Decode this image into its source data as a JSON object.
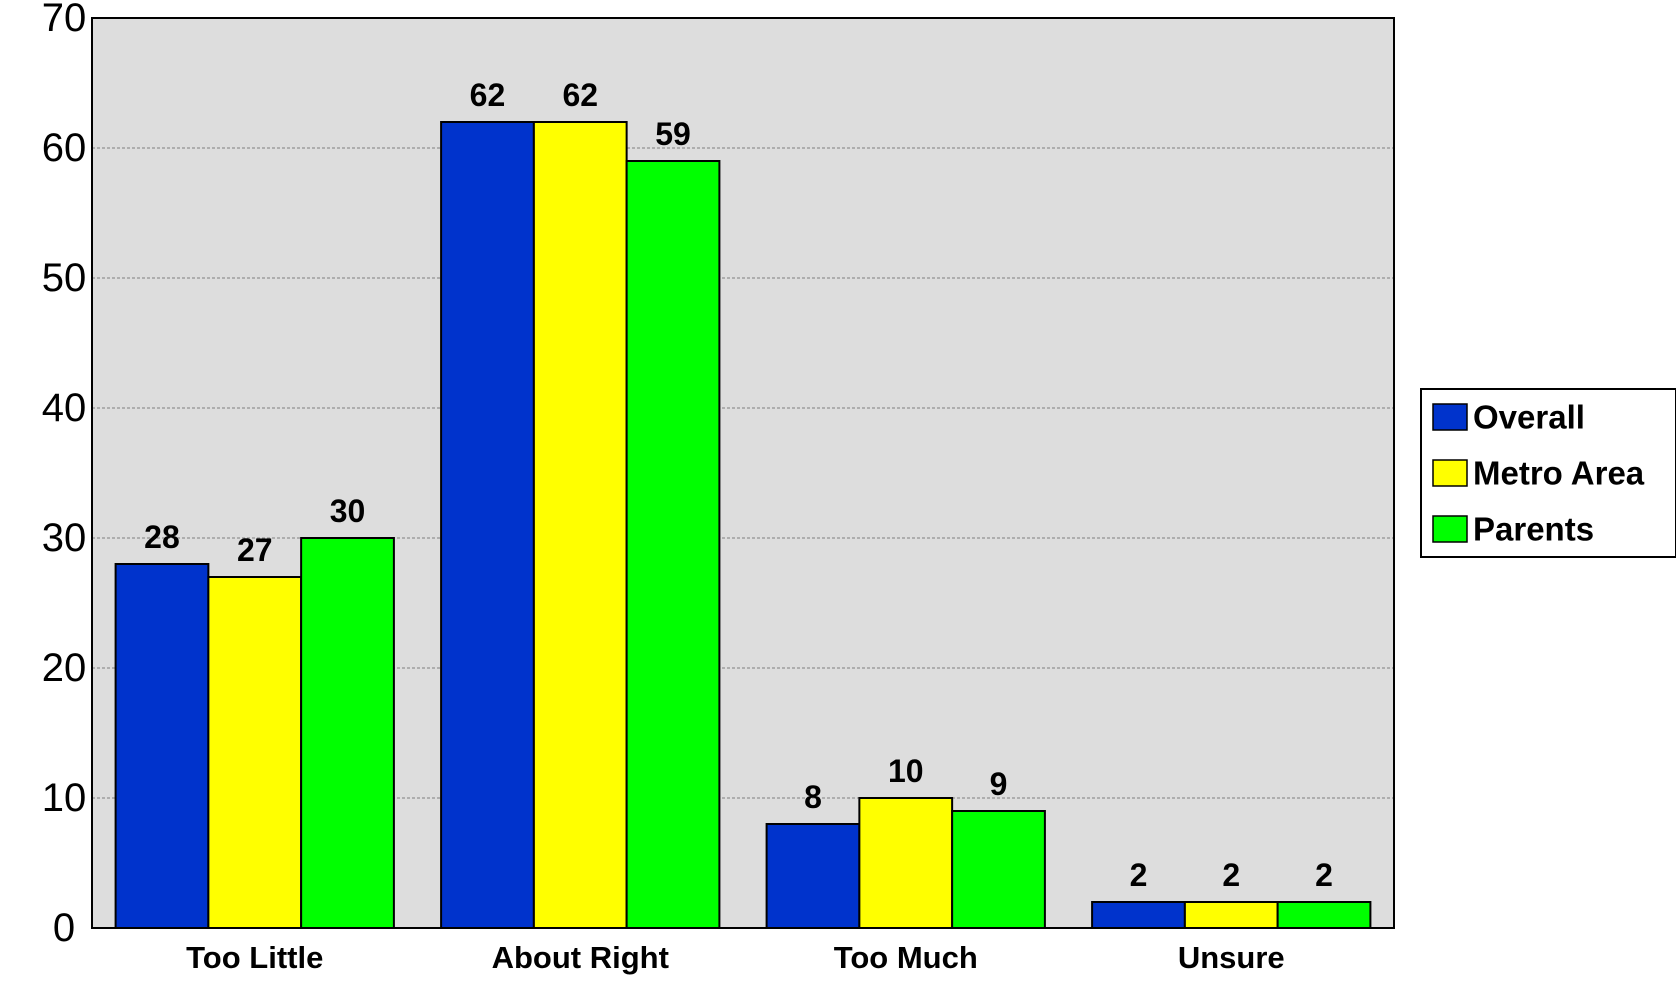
{
  "chart_data": {
    "type": "bar",
    "categories": [
      "Too Little",
      "About Right",
      "Too Much",
      "Unsure"
    ],
    "series": [
      {
        "name": "Overall",
        "values": [
          28,
          62,
          8,
          2
        ],
        "color": "#0033CC"
      },
      {
        "name": "Metro Area",
        "values": [
          27,
          62,
          10,
          2
        ],
        "color": "#FFFF00"
      },
      {
        "name": "Parents",
        "values": [
          30,
          59,
          9,
          2
        ],
        "color": "#00FF00"
      }
    ],
    "ylim": [
      0,
      70
    ],
    "yticks": [
      0,
      10,
      20,
      30,
      40,
      50,
      60,
      70
    ],
    "grid": true,
    "plot_background": "#DDDDDD",
    "legend_position": "right",
    "data_labels": true
  }
}
